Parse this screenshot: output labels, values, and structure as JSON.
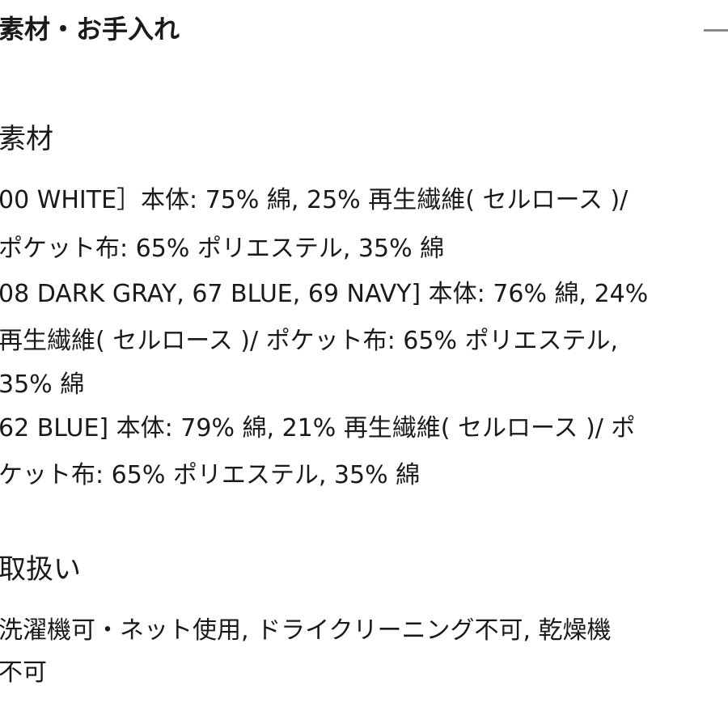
{
  "header": {
    "title": "素材・お手入れ",
    "toggle_icon": "minus-icon"
  },
  "materials": {
    "heading": "素材",
    "lines": [
      "00 WHITE］本体: 75% 綿, 25% 再生繊維( セルロース )/",
      "ポケット布: 65% ポリエステル, 35% 綿",
      "08 DARK GRAY, 67 BLUE, 69 NAVY] 本体: 76% 綿, 24%",
      "再生繊維( セルロース )/ ポケット布: 65% ポリエステル,",
      "35% 綿",
      "62 BLUE] 本体: 79% 綿, 21% 再生繊維( セルロース )/ ポ",
      "ケット布: 65% ポリエステル, 35% 綿"
    ]
  },
  "care": {
    "heading": "取扱い",
    "lines": [
      "洗濯機可・ネット使用, ドライクリーニング不可, 乾燥機",
      "不可"
    ]
  }
}
